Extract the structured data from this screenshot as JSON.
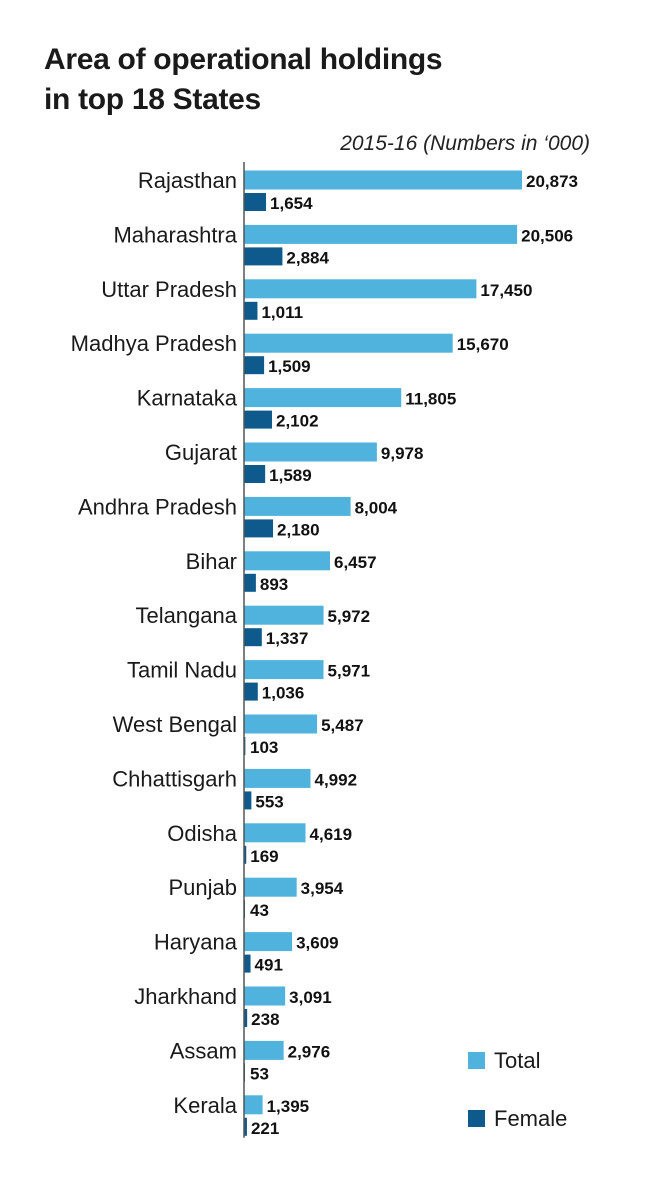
{
  "chart_data": {
    "type": "bar",
    "orientation": "horizontal",
    "title_lines": [
      "Area of operational holdings",
      "in top 18 States"
    ],
    "subtitle": "2015-16 (Numbers in ‘000)",
    "categories": [
      "Rajasthan",
      "Maharashtra",
      "Uttar Pradesh",
      "Madhya Pradesh",
      "Karnataka",
      "Gujarat",
      "Andhra Pradesh",
      "Bihar",
      "Telangana",
      "Tamil Nadu",
      "West Bengal",
      "Chhattisgarh",
      "Odisha",
      "Punjab",
      "Haryana",
      "Jharkhand",
      "Assam",
      "Kerala"
    ],
    "series": [
      {
        "name": "Total",
        "color": "#4fb3dd",
        "values": [
          20873,
          20506,
          17450,
          15670,
          11805,
          9978,
          8004,
          6457,
          5972,
          5971,
          5487,
          4992,
          4619,
          3954,
          3609,
          3091,
          2976,
          1395
        ]
      },
      {
        "name": "Female",
        "color": "#0f5a8c",
        "values": [
          1654,
          2884,
          1011,
          1509,
          2102,
          1589,
          2180,
          893,
          1337,
          1036,
          103,
          553,
          169,
          43,
          491,
          238,
          53,
          221
        ]
      }
    ],
    "xlim": [
      0,
      20873
    ],
    "grid": false,
    "legend_position": "bottom-right"
  }
}
